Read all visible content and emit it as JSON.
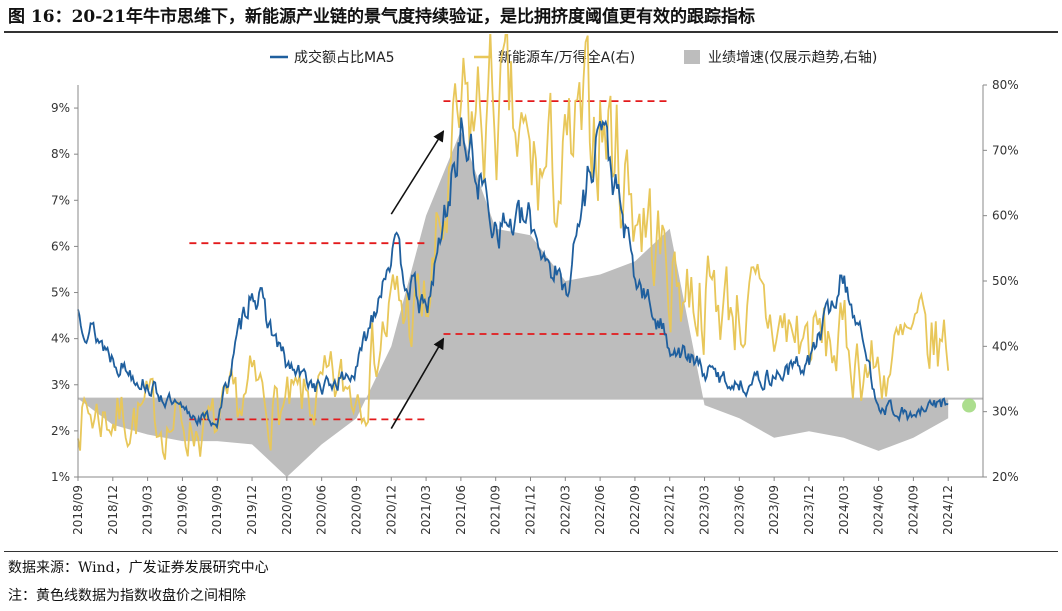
{
  "figure": {
    "title": "图 16：20-21年牛市思维下，新能源产业链的景气度持续验证，是比拥挤度阈值更有效的跟踪指标",
    "source": "数据来源：Wind，广发证券发展研究中心",
    "note": "注：黄色线数据为指数收盘价之间相除"
  },
  "colors": {
    "blue": "#1f5f9e",
    "yellow": "#e8c75a",
    "gray": "#bdbdbd",
    "red": "#e31a1c",
    "green": "#9ed87a"
  },
  "chart_data": {
    "type": "line",
    "x_ticks": [
      "2018/09",
      "2018/12",
      "2019/03",
      "2019/06",
      "2019/09",
      "2019/12",
      "2020/03",
      "2020/06",
      "2020/09",
      "2020/12",
      "2021/03",
      "2021/06",
      "2021/09",
      "2021/12",
      "2022/03",
      "2022/06",
      "2022/09",
      "2022/12",
      "2023/03",
      "2023/06",
      "2023/09",
      "2023/12",
      "2024/03",
      "2024/06",
      "2024/09",
      "2024/12"
    ],
    "y_left": {
      "ticks": [
        "1%",
        "2%",
        "3%",
        "4%",
        "5%",
        "6%",
        "7%",
        "8%",
        "9%"
      ],
      "range": [
        1,
        9.5
      ]
    },
    "y_right": {
      "ticks": [
        "20%",
        "30%",
        "40%",
        "50%",
        "60%",
        "70%",
        "80%"
      ],
      "range": [
        20,
        80
      ]
    },
    "legend": [
      {
        "name": "成交额占比MA5",
        "kind": "line",
        "color": "#1f5f9e"
      },
      {
        "name": "新能源车/万得全A(右)",
        "kind": "line",
        "color": "#e8c75a"
      },
      {
        "name": "业绩增速(仅展示趋势,右轴)",
        "kind": "area",
        "color": "#bdbdbd"
      }
    ],
    "series": [
      {
        "name": "成交额占比MA5",
        "axis": "left",
        "x": [
          0,
          1,
          2,
          3,
          4,
          5,
          6,
          7,
          8,
          9,
          10,
          11,
          12,
          13,
          14,
          15,
          16,
          17,
          18,
          19,
          20,
          21,
          22,
          23,
          24,
          25
        ],
        "y": [
          4.6,
          3.6,
          3.0,
          2.4,
          2.2,
          5.2,
          3.4,
          2.9,
          3.3,
          6.0,
          4.5,
          8.5,
          6.5,
          6.5,
          5.0,
          8.8,
          5.3,
          3.9,
          3.3,
          3.0,
          3.2,
          3.5,
          5.4,
          2.6,
          2.3,
          2.7
        ]
      },
      {
        "name": "新能源车/万得全A(右)",
        "axis": "right",
        "x": [
          0,
          1,
          2,
          3,
          4,
          5,
          6,
          7,
          8,
          9,
          10,
          11,
          12,
          13,
          14,
          15,
          16,
          17,
          18,
          19,
          20,
          21,
          22,
          23,
          24,
          25
        ],
        "y": [
          30,
          29.5,
          29.5,
          28,
          27,
          33,
          30,
          32,
          34,
          45,
          45,
          72,
          77,
          66,
          66,
          76,
          63,
          51,
          48,
          46,
          43,
          41,
          40,
          36,
          40,
          40
        ]
      },
      {
        "name": "业绩增速(仅展示趋势,右轴)",
        "axis": "right",
        "x": [
          0,
          1,
          2,
          3,
          4,
          5,
          6,
          7,
          8,
          9,
          10,
          11,
          12,
          13,
          14,
          15,
          16,
          17,
          18,
          19,
          20,
          21,
          22,
          23,
          24,
          25
        ],
        "y": [
          32,
          28,
          26.5,
          25.5,
          25.5,
          25,
          20,
          25,
          29,
          40,
          60,
          73,
          58,
          57,
          50,
          51,
          53,
          58,
          31,
          29,
          26,
          27,
          26,
          24,
          26,
          29
        ]
      }
    ],
    "reference_lines": [
      {
        "axis": "left",
        "y": 6.07,
        "x": [
          3.2,
          10.0
        ],
        "color": "#e31a1c",
        "style": "dashed"
      },
      {
        "axis": "left",
        "y": 2.25,
        "x": [
          3.2,
          10.0
        ],
        "color": "#e31a1c",
        "style": "dashed"
      },
      {
        "axis": "left",
        "y": 9.15,
        "x": [
          10.5,
          17.0
        ],
        "color": "#e31a1c",
        "style": "dashed"
      },
      {
        "axis": "left",
        "y": 4.1,
        "x": [
          10.5,
          17.0
        ],
        "color": "#e31a1c",
        "style": "dashed"
      },
      {
        "axis": "right",
        "y": 32,
        "x": [
          0,
          26
        ],
        "color": "#bdbdbd",
        "style": "baseline"
      }
    ],
    "arrows": [
      {
        "from": [
          9.0,
          6.7
        ],
        "to": [
          10.5,
          8.5
        ]
      },
      {
        "from": [
          9.0,
          2.05
        ],
        "to": [
          10.5,
          4.0
        ]
      }
    ],
    "marker": {
      "x": 25.6,
      "axis": "left",
      "y": 2.55,
      "color": "#9ed87a"
    }
  }
}
